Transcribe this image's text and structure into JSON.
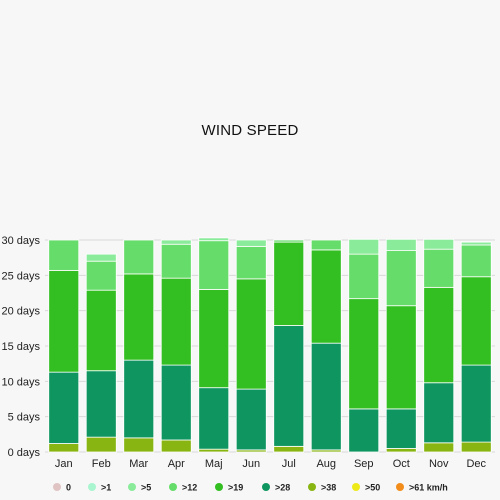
{
  "chart_data": {
    "type": "bar",
    "stacked": true,
    "title": "WIND SPEED",
    "categories": [
      "Jan",
      "Feb",
      "Mar",
      "Apr",
      "Maj",
      "Jun",
      "Jul",
      "Aug",
      "Sep",
      "Oct",
      "Nov",
      "Dec"
    ],
    "ylim": [
      0,
      30
    ],
    "y_ticks": [
      0,
      5,
      10,
      15,
      20,
      25,
      30
    ],
    "y_tick_labels": [
      "0 days",
      "5 days",
      "10 days",
      "15 days",
      "20 days",
      "25 days",
      "30 days"
    ],
    "grid": "horizontal",
    "legend_position": "bottom",
    "series": [
      {
        "name": "0",
        "color": "#e0c4c4",
        "values": [
          0,
          0,
          0,
          0,
          0,
          0,
          0,
          0,
          0,
          0,
          0,
          0
        ]
      },
      {
        "name": ">1",
        "color": "#a8f5cf",
        "values": [
          0,
          0,
          0,
          0,
          0,
          0,
          0,
          0,
          0,
          0,
          0,
          0
        ]
      },
      {
        "name": ">5",
        "color": "#8aeb9a",
        "values": [
          0,
          1,
          0,
          0.6,
          0.4,
          0.9,
          0,
          0,
          2.1,
          1.6,
          1.4,
          0.4
        ]
      },
      {
        "name": ">12",
        "color": "#66dd6a",
        "values": [
          4.3,
          4.1,
          4.8,
          4.8,
          6.9,
          4.6,
          0.3,
          1.4,
          6.3,
          7.8,
          5.4,
          4.5
        ]
      },
      {
        "name": ">19",
        "color": "#33bf22",
        "values": [
          14.4,
          11.4,
          12.2,
          12.3,
          13.9,
          15.6,
          11.8,
          13.2,
          15.6,
          14.6,
          13.5,
          12.5
        ]
      },
      {
        "name": ">28",
        "color": "#0f9660",
        "values": [
          10.1,
          9.4,
          11,
          10.6,
          8.7,
          8.6,
          17.1,
          15.1,
          6.1,
          5.6,
          8.5,
          10.9
        ]
      },
      {
        "name": ">38",
        "color": "#88b512",
        "values": [
          1.2,
          2.1,
          2,
          1.7,
          0.4,
          0.3,
          0.8,
          0.3,
          0,
          0.5,
          1.3,
          1.4
        ]
      },
      {
        "name": ">50",
        "color": "#eeea1a",
        "values": [
          0,
          0,
          0,
          0,
          0,
          0,
          0,
          0,
          0,
          0,
          0,
          0
        ]
      },
      {
        "name": ">61 km/h",
        "color": "#f28c1a",
        "values": [
          0,
          0,
          0,
          0,
          0,
          0,
          0,
          0,
          0,
          0,
          0,
          0
        ]
      }
    ]
  }
}
